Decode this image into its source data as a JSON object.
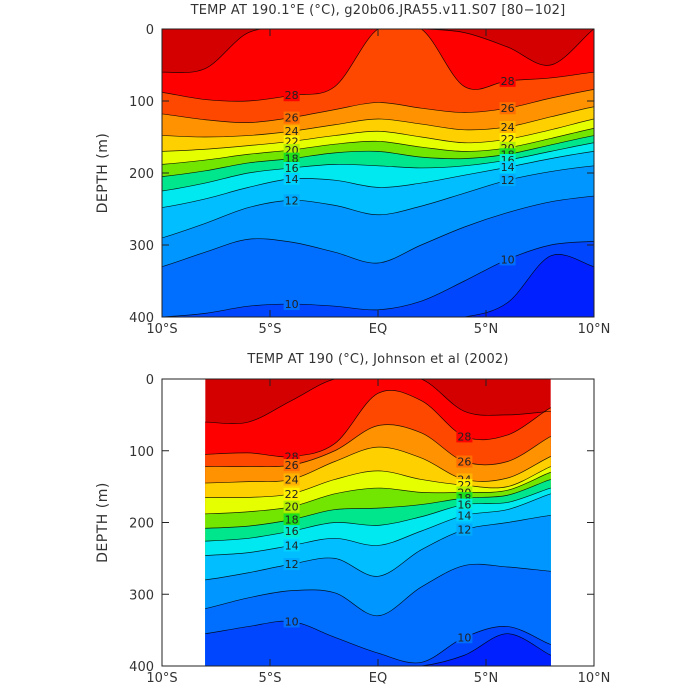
{
  "chart_data": [
    {
      "type": "contour",
      "title": "TEMP AT 190.1°E (°C), g20b06.JRA55.v11.S07 [80−102]",
      "ylabel": "DEPTH (m)",
      "x_tick_labels": [
        "10°S",
        "5°S",
        "EQ",
        "5°N",
        "10°N"
      ],
      "x_ticks": [
        -10,
        -5,
        0,
        5,
        10
      ],
      "y_ticks": [
        0,
        100,
        200,
        300,
        400
      ],
      "xlim": [
        -10,
        10
      ],
      "ylim": [
        0,
        400
      ],
      "y_inverted": true,
      "data_extent": [
        -10,
        10
      ],
      "contour_interval": 1,
      "labeled_contours": [
        28,
        26,
        24,
        22,
        20,
        18,
        16,
        14,
        12,
        10
      ],
      "isotherm_depths": {
        "lat": [
          -10,
          -8,
          -6,
          -4,
          -2,
          0,
          2,
          4,
          6,
          8,
          10
        ],
        "levels": [
          {
            "temp": 29,
            "depth": [
              60,
              55,
              5,
              0,
              0,
              0,
              0,
              5,
              25,
              50,
              0
            ]
          },
          {
            "temp": 28,
            "depth": [
              88,
              98,
              100,
              92,
              80,
              0,
              0,
              80,
              72,
              68,
              60
            ]
          },
          {
            "temp": 26,
            "depth": [
              118,
              126,
              130,
              123,
              112,
              102,
              110,
              116,
              110,
              96,
              84
            ]
          },
          {
            "temp": 24,
            "depth": [
              148,
              150,
              148,
              142,
              133,
              125,
              132,
              140,
              136,
              122,
              108
            ]
          },
          {
            "temp": 22,
            "depth": [
              170,
              167,
              162,
              156,
              148,
              142,
              150,
              158,
              153,
              140,
              125
            ]
          },
          {
            "temp": 20,
            "depth": [
              188,
              182,
              174,
              168,
              160,
              156,
              164,
              170,
              165,
              152,
              138
            ]
          },
          {
            "temp": 18,
            "depth": [
              205,
              197,
              186,
              180,
              172,
              170,
              178,
              180,
              174,
              161,
              148
            ]
          },
          {
            "temp": 16,
            "depth": [
              225,
              214,
              200,
              193,
              188,
              190,
              193,
              190,
              182,
              170,
              158
            ]
          },
          {
            "temp": 14,
            "depth": [
              248,
              236,
              220,
              208,
              210,
              220,
              214,
              203,
              192,
              180,
              170
            ]
          },
          {
            "temp": 12,
            "depth": [
              290,
              270,
              248,
              238,
              245,
              258,
              246,
              228,
              210,
              198,
              190
            ]
          },
          {
            "temp": 11,
            "depth": [
              330,
              310,
              292,
              296,
              310,
              325,
              300,
              275,
              255,
              240,
              232
            ]
          },
          {
            "temp": 10,
            "depth": [
              400,
              395,
              385,
              382,
              385,
              390,
              378,
              350,
              320,
              300,
              295
            ]
          },
          {
            "temp": 9,
            "depth": [
              410,
              410,
              410,
              410,
              410,
              410,
              410,
              410,
              380,
              315,
              330
            ]
          }
        ]
      }
    },
    {
      "type": "contour",
      "title": "TEMP AT 190 (°C), Johnson et al (2002)",
      "ylabel": "DEPTH (m)",
      "x_tick_labels": [
        "10°S",
        "5°S",
        "EQ",
        "5°N",
        "10°N"
      ],
      "x_ticks": [
        -10,
        -5,
        0,
        5,
        10
      ],
      "y_ticks": [
        0,
        100,
        200,
        300,
        400
      ],
      "xlim": [
        -10,
        10
      ],
      "ylim": [
        0,
        400
      ],
      "y_inverted": true,
      "data_extent": [
        -8,
        8
      ],
      "contour_interval": 1,
      "labeled_contours": [
        28,
        26,
        24,
        22,
        20,
        18,
        16,
        14,
        12,
        10
      ],
      "isotherm_depths": {
        "lat": [
          -8,
          -6,
          -4,
          -2,
          0,
          2,
          4,
          6,
          8
        ],
        "levels": [
          {
            "temp": 29,
            "depth": [
              60,
              60,
              30,
              0,
              0,
              0,
              45,
              50,
              45
            ]
          },
          {
            "temp": 28,
            "depth": [
              105,
              103,
              108,
              90,
              20,
              30,
              80,
              78,
              40
            ]
          },
          {
            "temp": 26,
            "depth": [
              122,
              122,
              120,
              100,
              65,
              75,
              115,
              115,
              80
            ]
          },
          {
            "temp": 24,
            "depth": [
              145,
              143,
              140,
              115,
              95,
              110,
              140,
              138,
              108
            ]
          },
          {
            "temp": 22,
            "depth": [
              165,
              165,
              160,
              140,
              128,
              140,
              148,
              150,
              122
            ]
          },
          {
            "temp": 20,
            "depth": [
              188,
              185,
              178,
              160,
              152,
              158,
              158,
              155,
              130
            ]
          },
          {
            "temp": 18,
            "depth": [
              208,
              205,
              196,
              182,
              180,
              175,
              166,
              162,
              140
            ]
          },
          {
            "temp": 16,
            "depth": [
              226,
              222,
              212,
              200,
              204,
              192,
              175,
              172,
              152
            ]
          },
          {
            "temp": 14,
            "depth": [
              246,
              242,
              232,
              222,
              232,
              212,
              190,
              182,
              160
            ]
          },
          {
            "temp": 12,
            "depth": [
              280,
              270,
              258,
              250,
              275,
              238,
              210,
              200,
              190
            ]
          },
          {
            "temp": 11,
            "depth": [
              320,
              305,
              295,
              298,
              330,
              290,
              260,
              262,
              268
            ]
          },
          {
            "temp": 10,
            "depth": [
              355,
              345,
              338,
              360,
              382,
              395,
              360,
              345,
              370
            ]
          },
          {
            "temp": 9,
            "depth": [
              410,
              410,
              410,
              410,
              410,
              410,
              385,
              355,
              385
            ]
          }
        ]
      }
    }
  ]
}
